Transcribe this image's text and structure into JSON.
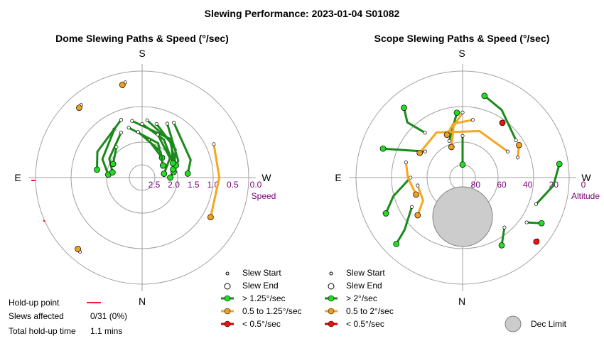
{
  "title": "Slewing Performance: 2023-01-04 S01082",
  "colors": {
    "grid": "#a0a0a0",
    "fast": "#1a8a1a",
    "fastFill": "#22dd22",
    "mid": "#f5a623",
    "midFill": "#f0a020",
    "slow": "#cc0000",
    "slowFill": "#ee1111",
    "holdup": "#ee2222",
    "label": "#7a007a",
    "limit": "#cccccc"
  },
  "dome": {
    "title": "Dome Slewing Paths & Speed (°/sec)",
    "dirs": {
      "top": "S",
      "bottom": "N",
      "left": "E",
      "right": "W"
    },
    "axis_name": "Speed",
    "ticks": [
      "2.5",
      "2.0",
      "1.5",
      "1.0",
      "0.5",
      "0.0"
    ]
  },
  "scope": {
    "title": "Scope Slewing Paths & Speed (°/sec)",
    "dirs": {
      "top": "S",
      "bottom": "N",
      "left": "E",
      "right": "W"
    },
    "axis_name": "Altitude",
    "ticks": [
      "80",
      "60",
      "40",
      "20",
      "0"
    ]
  },
  "legend_dome": {
    "start": "Slew Start",
    "end": "Slew End",
    "fast": "> 1.25°/sec",
    "mid": "0.5 to 1.25°/sec",
    "slow": "< 0.5°/sec"
  },
  "legend_scope": {
    "start": "Slew Start",
    "end": "Slew End",
    "fast": "> 2°/sec",
    "mid": "0.5 to 2°/sec",
    "slow": "< 0.5°/sec",
    "limit": "Dec Limit"
  },
  "holdup": {
    "point_label": "Hold-up point",
    "slews_label": "Slews affected",
    "slews_value": "0/31 (0%)",
    "time_label": "Total hold-up time",
    "time_value": "1.1 mins"
  },
  "chart_data": [
    {
      "type": "scatter",
      "title": "Dome Slewing Paths & Speed (°/sec)",
      "projection": "polar; azimuth S at top, W right, N bottom, E left; radial axis = speed",
      "radial_axis": {
        "label": "Speed",
        "ticks": [
          2.5,
          2.0,
          1.5,
          1.0,
          0.5,
          0.0
        ]
      },
      "series": [
        {
          "name": "> 1.25°/sec",
          "paths": [
            [
              [
                205,
                1.2
              ],
              [
                245,
                1.7
              ],
              [
                270,
                2.0
              ]
            ],
            [
              [
                195,
                1.3
              ],
              [
                230,
                1.6
              ],
              [
                260,
                1.9
              ]
            ],
            [
              [
                185,
                1.25
              ],
              [
                220,
                1.55
              ],
              [
                255,
                1.9
              ]
            ],
            [
              [
                170,
                1.25
              ],
              [
                215,
                1.5
              ],
              [
                250,
                1.8
              ]
            ],
            [
              [
                180,
                1.35
              ],
              [
                210,
                1.6
              ],
              [
                245,
                1.85
              ]
            ],
            [
              [
                165,
                1.4
              ],
              [
                205,
                1.75
              ],
              [
                240,
                2.1
              ]
            ],
            [
              [
                150,
                1.3
              ],
              [
                115,
                1.6
              ],
              [
                95,
                1.85
              ]
            ],
            [
              [
                155,
                1.45
              ],
              [
                120,
                1.75
              ],
              [
                100,
                1.95
              ]
            ],
            [
              [
                200,
                1.55
              ],
              [
                235,
                1.85
              ],
              [
                260,
                2.15
              ]
            ],
            [
              [
                140,
                1.7
              ],
              [
                115,
                1.9
              ]
            ],
            [
              [
                190,
                1.75
              ],
              [
                225,
                2.0
              ]
            ],
            [
              [
                175,
                1.55
              ],
              [
                215,
                1.9
              ],
              [
                240,
                2.1
              ]
            ],
            [
              [
                160,
                1.15
              ],
              [
                120,
                1.4
              ],
              [
                100,
                1.55
              ]
            ],
            [
              [
                210,
                1.1
              ],
              [
                250,
                1.4
              ],
              [
                265,
                1.55
              ]
            ]
          ]
        },
        {
          "name": "0.5 to 1.25°/sec",
          "paths": [
            [
              [
                245,
                0.7
              ],
              [
                270,
                0.75
              ],
              [
                300,
                0.7
              ]
            ],
            [
              [
                170,
                0.25
              ],
              [
                168,
                0.3
              ]
            ],
            [
              [
                140,
                0.3
              ],
              [
                138,
                0.32
              ]
            ],
            [
              [
                40,
                0.25
              ],
              [
                42,
                0.27
              ]
            ]
          ]
        },
        {
          "name": "< 0.5°/sec",
          "paths": []
        }
      ]
    },
    {
      "type": "scatter",
      "title": "Scope Slewing Paths & Speed (°/sec)",
      "projection": "polar; azimuth S at top, W right, N bottom, E left; radial axis = altitude (90 at center, 0 at edge)",
      "radial_axis": {
        "label": "Altitude",
        "ticks": [
          80,
          60,
          40,
          20,
          0
        ]
      },
      "series": [
        {
          "name": "> 2°/sec",
          "paths": [
            [
              [
                180,
                58
              ],
              [
                180,
                80
              ]
            ],
            [
              [
                160,
                60
              ],
              [
                175,
                40
              ]
            ],
            [
              [
                235,
                40
              ],
              [
                210,
                30
              ],
              [
                195,
                25
              ]
            ],
            [
              [
                140,
                45
              ],
              [
                135,
                30
              ],
              [
                140,
                20
              ]
            ],
            [
              [
                125,
                55
              ],
              [
                115,
                40
              ],
              [
                110,
                25
              ]
            ],
            [
              [
                90,
                50
              ],
              [
                75,
                35
              ],
              [
                65,
                25
              ]
            ],
            [
              [
                60,
                45
              ],
              [
                48,
                30
              ],
              [
                45,
                18
              ]
            ],
            [
              [
                305,
                30
              ],
              [
                300,
                20
              ]
            ],
            [
              [
                290,
                30
              ],
              [
                275,
                20
              ],
              [
                262,
                15
              ]
            ],
            [
              [
                320,
                40
              ],
              [
                330,
                30
              ]
            ]
          ]
        },
        {
          "name": "0.5 to 2°/sec",
          "paths": [
            [
              [
                180,
                40
              ],
              [
                170,
                50
              ],
              [
                160,
                65
              ]
            ],
            [
              [
                240,
                50
              ],
              [
                200,
                52
              ],
              [
                150,
                50
              ],
              [
                120,
                52
              ]
            ],
            [
              [
                190,
                45
              ],
              [
                170,
                48
              ],
              [
                160,
                55
              ]
            ],
            [
              [
                105,
                45
              ],
              [
                90,
                48
              ],
              [
                70,
                52
              ]
            ],
            [
              [
                80,
                55
              ],
              [
                60,
                55
              ],
              [
                50,
                45
              ]
            ],
            [
              [
                250,
                45
              ],
              [
                240,
                40
              ]
            ]
          ]
        },
        {
          "name": "< 0.5°/sec",
          "paths": [
            [
              [
                215,
                38
              ],
              [
                216,
                38
              ]
            ],
            [
              [
                310,
                15
              ],
              [
                311,
                15
              ]
            ]
          ]
        }
      ],
      "dec_limit": {
        "label": "Dec Limit"
      }
    }
  ]
}
